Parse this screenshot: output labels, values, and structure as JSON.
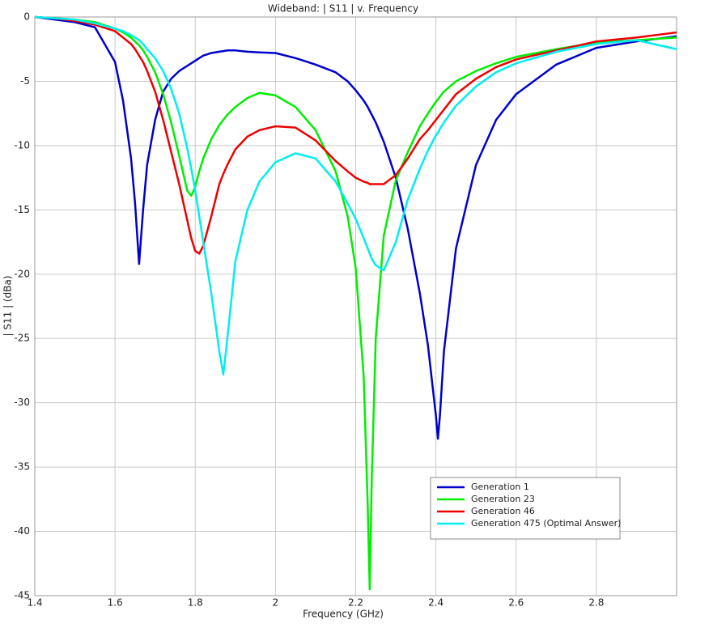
{
  "chart_data": {
    "type": "line",
    "title": "Wideband: | S11 | v. Frequency",
    "xlabel": "Frequency (GHz)",
    "ylabel": "| S11 | (dBa)",
    "x": [
      1.4,
      1.45,
      1.5,
      1.55,
      1.6,
      1.62,
      1.64,
      1.65,
      1.66,
      1.67,
      1.68,
      1.7,
      1.72,
      1.74,
      1.76,
      1.78,
      1.79,
      1.8,
      1.81,
      1.82,
      1.84,
      1.86,
      1.87,
      1.88,
      1.9,
      1.93,
      1.96,
      2.0,
      2.05,
      2.1,
      2.15,
      2.18,
      2.2,
      2.22,
      2.23,
      2.235,
      2.24,
      2.25,
      2.27,
      2.3,
      2.33,
      2.36,
      2.38,
      2.4,
      2.405,
      2.41,
      2.42,
      2.45,
      2.5,
      2.55,
      2.6,
      2.7,
      2.8,
      2.9,
      3.0
    ],
    "series": [
      {
        "name": "Generation 1",
        "color": "#0000cc",
        "values": [
          0,
          -0.2,
          -0.4,
          -0.8,
          -3.5,
          -6.5,
          -11,
          -14.5,
          -19.2,
          -15,
          -11.5,
          -8,
          -5.8,
          -4.8,
          -4.2,
          -3.8,
          -3.6,
          -3.4,
          -3.2,
          -3.0,
          -2.8,
          -2.7,
          -2.65,
          -2.6,
          -2.6,
          -2.7,
          -2.75,
          -2.8,
          -3.2,
          -3.7,
          -4.3,
          -5,
          -5.7,
          -6.5,
          -7,
          -7.3,
          -7.6,
          -8.2,
          -9.7,
          -12.5,
          -16.5,
          -21.5,
          -25.5,
          -31,
          -32.8,
          -31,
          -26,
          -18,
          -11.5,
          -8,
          -6,
          -3.7,
          -2.4,
          -1.9,
          -1.5
        ]
      },
      {
        "name": "Generation 23",
        "color": "#00ee00",
        "values": [
          0,
          -0.1,
          -0.2,
          -0.4,
          -0.9,
          -1.2,
          -1.6,
          -1.9,
          -2.2,
          -2.6,
          -3.1,
          -4.3,
          -6,
          -8.2,
          -10.8,
          -13.5,
          -13.9,
          -13.2,
          -12,
          -11,
          -9.5,
          -8.4,
          -8,
          -7.6,
          -7,
          -6.3,
          -5.9,
          -6.1,
          -7,
          -8.8,
          -12,
          -15.5,
          -19.5,
          -28,
          -38,
          -44.5,
          -36,
          -25,
          -17,
          -12.7,
          -10.5,
          -8.5,
          -7.5,
          -6.6,
          -6.4,
          -6.2,
          -5.8,
          -5,
          -4.2,
          -3.6,
          -3.1,
          -2.5,
          -2.0,
          -1.8,
          -1.6
        ]
      },
      {
        "name": "Generation 46",
        "color": "#ee0000",
        "values": [
          0,
          -0.1,
          -0.3,
          -0.6,
          -1.1,
          -1.6,
          -2.1,
          -2.5,
          -3,
          -3.5,
          -4.2,
          -5.8,
          -8,
          -10.5,
          -13,
          -15.8,
          -17.2,
          -18.2,
          -18.4,
          -17.8,
          -15.5,
          -13,
          -12.2,
          -11.5,
          -10.3,
          -9.3,
          -8.8,
          -8.5,
          -8.6,
          -9.6,
          -11.2,
          -12.0,
          -12.5,
          -12.8,
          -12.9,
          -13,
          -13,
          -13,
          -13,
          -12.3,
          -11,
          -9.5,
          -8.8,
          -8,
          -7.8,
          -7.6,
          -7.2,
          -6,
          -4.8,
          -3.9,
          -3.3,
          -2.6,
          -1.9,
          -1.6,
          -1.2
        ]
      },
      {
        "name": "Generation 475 (Optimal Answer)",
        "color": "#00eeee",
        "values": [
          0,
          -0.1,
          -0.2,
          -0.5,
          -0.9,
          -1.1,
          -1.4,
          -1.6,
          -1.8,
          -2.1,
          -2.5,
          -3.2,
          -4.2,
          -5.6,
          -7.5,
          -10.2,
          -11.8,
          -13.5,
          -15.5,
          -17.5,
          -21.5,
          -26,
          -27.8,
          -25,
          -19,
          -15,
          -12.8,
          -11.3,
          -10.6,
          -11,
          -12.8,
          -14.5,
          -15.7,
          -17.2,
          -18,
          -18.4,
          -18.8,
          -19.3,
          -19.7,
          -17.5,
          -14.2,
          -11.8,
          -10.4,
          -9.2,
          -9,
          -8.7,
          -8.2,
          -6.9,
          -5.4,
          -4.3,
          -3.6,
          -2.7,
          -2.1,
          -1.8,
          -2.5
        ]
      }
    ],
    "xlim": [
      1.4,
      3.0
    ],
    "xticks": [
      1.4,
      1.6,
      1.8,
      2,
      2.2,
      2.4,
      2.6,
      2.8
    ],
    "ylim": [
      -45,
      0
    ],
    "yticks": [
      0,
      -5,
      -10,
      -15,
      -20,
      -25,
      -30,
      -35,
      -40,
      -45
    ],
    "grid": true,
    "legend": "lower right"
  }
}
